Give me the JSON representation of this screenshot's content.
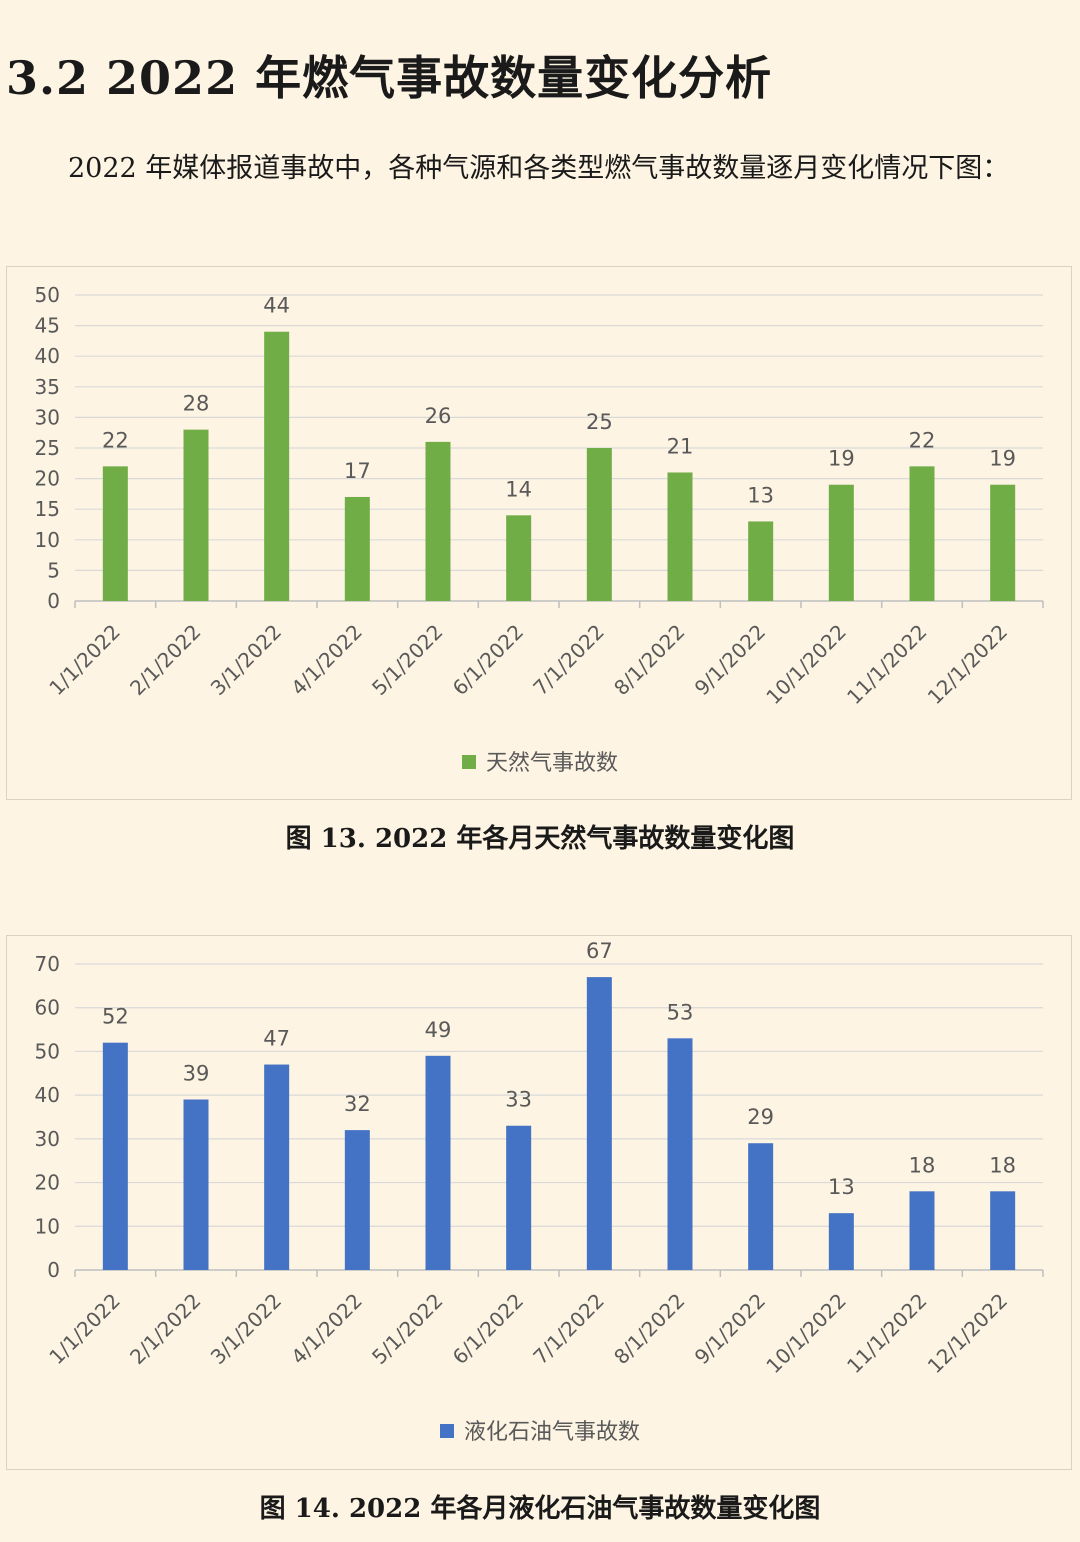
{
  "section": {
    "heading": "3.2 2022 年燃气事故数量变化分析",
    "paragraph": "2022 年媒体报道事故中，各种气源和各类型燃气事故数量逐月变化情况下图："
  },
  "colors": {
    "background": "#fdf4e3",
    "natural_gas_bar": "#70ad47",
    "lpg_bar": "#4472c4",
    "gridline": "#d9d9d9",
    "axis_text": "#595959"
  },
  "captions": {
    "fig13": "图 13. 2022 年各月天然气事故数量变化图",
    "fig14": "图 14. 2022 年各月液化石油气事故数量变化图"
  },
  "chart_data": [
    {
      "type": "bar",
      "title": "",
      "xlabel": "",
      "ylabel": "",
      "categories": [
        "1/1/2022",
        "2/1/2022",
        "3/1/2022",
        "4/1/2022",
        "5/1/2022",
        "6/1/2022",
        "7/1/2022",
        "8/1/2022",
        "9/1/2022",
        "10/1/2022",
        "11/1/2022",
        "12/1/2022"
      ],
      "series": [
        {
          "name": "天然气事故数",
          "values": [
            22,
            28,
            44,
            17,
            26,
            14,
            25,
            21,
            13,
            19,
            22,
            19
          ],
          "color": "#70ad47"
        }
      ],
      "ylim": [
        0,
        50
      ],
      "yticks": [
        0,
        5,
        10,
        15,
        20,
        25,
        30,
        35,
        40,
        45,
        50
      ],
      "grid": true,
      "data_labels": true,
      "legend": "bottom"
    },
    {
      "type": "bar",
      "title": "",
      "xlabel": "",
      "ylabel": "",
      "categories": [
        "1/1/2022",
        "2/1/2022",
        "3/1/2022",
        "4/1/2022",
        "5/1/2022",
        "6/1/2022",
        "7/1/2022",
        "8/1/2022",
        "9/1/2022",
        "10/1/2022",
        "11/1/2022",
        "12/1/2022"
      ],
      "series": [
        {
          "name": "液化石油气事故数",
          "values": [
            52,
            39,
            47,
            32,
            49,
            33,
            67,
            53,
            29,
            13,
            18,
            18
          ],
          "color": "#4472c4"
        }
      ],
      "ylim": [
        0,
        70
      ],
      "yticks": [
        0,
        10,
        20,
        30,
        40,
        50,
        60,
        70
      ],
      "grid": true,
      "data_labels": true,
      "legend": "bottom"
    }
  ]
}
